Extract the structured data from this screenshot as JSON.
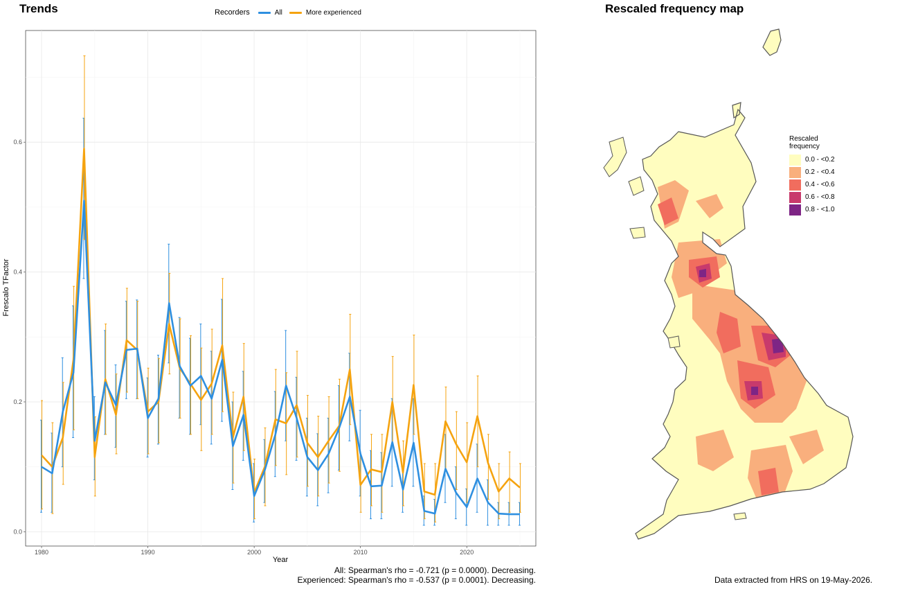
{
  "trends_panel": {
    "title": "Trends",
    "legend": {
      "title": "Recorders",
      "items": [
        {
          "label": "All",
          "color": "#2E8FE0"
        },
        {
          "label": "More experienced",
          "color": "#F5A30F"
        }
      ]
    },
    "stats": {
      "all": "All: Spearman's rho = -0.721 (p = 0.0000). Decreasing.",
      "experienced": "Experienced: Spearman's rho = -0.537 (p = 0.0001). Decreasing."
    }
  },
  "map_panel": {
    "title": "Rescaled frequency map",
    "legend": {
      "title_line1": "Rescaled",
      "title_line2": "frequency",
      "items": [
        {
          "label": "0.0 - <0.2",
          "color": "#FFFDBF"
        },
        {
          "label": "0.2 - <0.4",
          "color": "#F9AF7D"
        },
        {
          "label": "0.4 - <0.6",
          "color": "#F16D5E"
        },
        {
          "label": "0.6 - <0.8",
          "color": "#C83A6C"
        },
        {
          "label": "0.8 - <1.0",
          "color": "#7E2585"
        }
      ]
    },
    "footnote": "Data extracted from HRS on 19-May-2026."
  },
  "chart_data": {
    "type": "line",
    "title": "",
    "xlabel": "Year",
    "ylabel": "Frescalo TFactor",
    "xlim": [
      1978.5,
      2026.5
    ],
    "ylim": [
      -0.022,
      0.772
    ],
    "x_ticks": [
      1980,
      1990,
      2000,
      2010,
      2020
    ],
    "y_ticks": [
      0.0,
      0.2,
      0.4,
      0.6
    ],
    "y_tick_labels": [
      "0.0",
      "0.2",
      "0.4",
      "0.6"
    ],
    "grid": true,
    "legend_position": "top",
    "x": [
      1980,
      1981,
      1982,
      1983,
      1984,
      1985,
      1986,
      1987,
      1988,
      1989,
      1990,
      1991,
      1992,
      1993,
      1994,
      1995,
      1996,
      1997,
      1998,
      1999,
      2000,
      2001,
      2002,
      2003,
      2004,
      2005,
      2006,
      2007,
      2008,
      2009,
      2010,
      2011,
      2012,
      2013,
      2014,
      2015,
      2016,
      2017,
      2018,
      2019,
      2020,
      2021,
      2022,
      2023,
      2024,
      2025
    ],
    "series": [
      {
        "name": "All",
        "color": "#2E8FE0",
        "values": [
          0.1,
          0.09,
          0.185,
          0.245,
          0.51,
          0.14,
          0.23,
          0.195,
          0.28,
          0.282,
          0.175,
          0.205,
          0.352,
          0.255,
          0.225,
          0.24,
          0.205,
          0.265,
          0.132,
          0.18,
          0.055,
          0.095,
          0.15,
          0.225,
          0.175,
          0.115,
          0.095,
          0.12,
          0.16,
          0.208,
          0.12,
          0.07,
          0.071,
          0.138,
          0.065,
          0.137,
          0.032,
          0.028,
          0.097,
          0.06,
          0.038,
          0.082,
          0.045,
          0.028,
          0.027,
          0.027
        ],
        "lower": [
          0.03,
          0.03,
          0.1,
          0.145,
          0.39,
          0.08,
          0.15,
          0.13,
          0.205,
          0.205,
          0.115,
          0.135,
          0.26,
          0.175,
          0.15,
          0.165,
          0.135,
          0.17,
          0.065,
          0.11,
          0.015,
          0.045,
          0.085,
          0.14,
          0.11,
          0.055,
          0.04,
          0.06,
          0.095,
          0.14,
          0.055,
          0.02,
          0.02,
          0.07,
          0.03,
          0.07,
          0.01,
          0.01,
          0.045,
          0.02,
          0.01,
          0.03,
          0.01,
          0.01,
          0.01,
          0.01
        ],
        "upper": [
          0.172,
          0.152,
          0.268,
          0.348,
          0.637,
          0.208,
          0.31,
          0.257,
          0.355,
          0.357,
          0.237,
          0.272,
          0.443,
          0.33,
          0.298,
          0.32,
          0.278,
          0.358,
          0.2,
          0.247,
          0.105,
          0.142,
          0.216,
          0.31,
          0.238,
          0.175,
          0.151,
          0.175,
          0.225,
          0.275,
          0.187,
          0.125,
          0.122,
          0.205,
          0.1,
          0.205,
          0.055,
          0.05,
          0.15,
          0.1,
          0.066,
          0.135,
          0.08,
          0.045,
          0.045,
          0.045
        ]
      },
      {
        "name": "More experienced",
        "color": "#F5A30F",
        "values": [
          0.118,
          0.1,
          0.145,
          0.265,
          0.59,
          0.115,
          0.235,
          0.18,
          0.295,
          0.28,
          0.185,
          0.2,
          0.32,
          0.252,
          0.228,
          0.203,
          0.228,
          0.287,
          0.145,
          0.208,
          0.06,
          0.1,
          0.173,
          0.167,
          0.195,
          0.137,
          0.115,
          0.14,
          0.163,
          0.25,
          0.072,
          0.096,
          0.092,
          0.2,
          0.091,
          0.226,
          0.062,
          0.057,
          0.17,
          0.135,
          0.107,
          0.178,
          0.106,
          0.062,
          0.082,
          0.068
        ],
        "lower": [
          0.035,
          0.028,
          0.073,
          0.157,
          0.45,
          0.055,
          0.15,
          0.12,
          0.215,
          0.205,
          0.12,
          0.137,
          0.243,
          0.175,
          0.15,
          0.125,
          0.15,
          0.185,
          0.075,
          0.125,
          0.02,
          0.04,
          0.102,
          0.088,
          0.115,
          0.07,
          0.055,
          0.075,
          0.093,
          0.165,
          0.03,
          0.04,
          0.03,
          0.132,
          0.04,
          0.15,
          0.02,
          0.015,
          0.095,
          0.065,
          0.045,
          0.1,
          0.05,
          0.02,
          0.03,
          0.03
        ],
        "upper": [
          0.202,
          0.168,
          0.23,
          0.378,
          0.733,
          0.177,
          0.32,
          0.243,
          0.375,
          0.355,
          0.252,
          0.267,
          0.398,
          0.328,
          0.302,
          0.283,
          0.312,
          0.39,
          0.215,
          0.29,
          0.112,
          0.16,
          0.25,
          0.245,
          0.278,
          0.21,
          0.178,
          0.208,
          0.235,
          0.335,
          0.115,
          0.15,
          0.15,
          0.27,
          0.14,
          0.303,
          0.105,
          0.105,
          0.223,
          0.185,
          0.168,
          0.24,
          0.15,
          0.105,
          0.123,
          0.105
        ]
      }
    ]
  }
}
